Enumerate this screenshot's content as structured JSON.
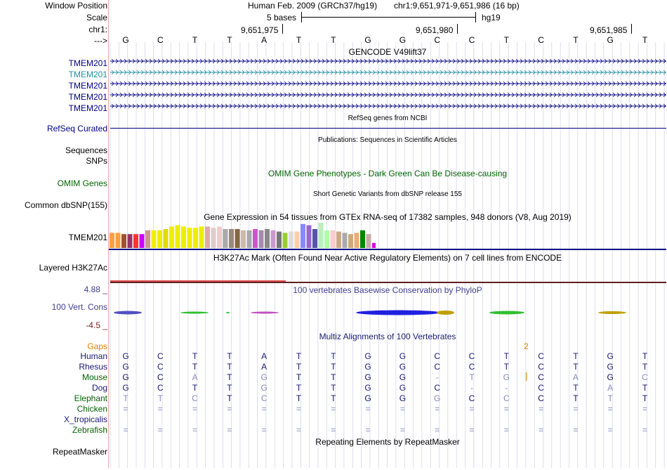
{
  "header": {
    "window_position_label": "Window Position",
    "scale_label": "Scale",
    "chrom_label": "chr1:",
    "arrow_label": "--->",
    "assembly": "Human Feb. 2009 (GRCh37/hg19)",
    "position": "chr1:9,651,971-9,651,986 (16 bp)",
    "scale_text": "5 bases",
    "db": "hg19",
    "coords": [
      "9,651,975",
      "9,651,980",
      "9,651,985"
    ]
  },
  "sequence": [
    "G",
    "C",
    "T",
    "T",
    "A",
    "T",
    "T",
    "G",
    "G",
    "C",
    "C",
    "T",
    "C",
    "T",
    "G",
    "T"
  ],
  "tracks": {
    "gencode_title": "GENCODE V49lift37",
    "gencode_genes": [
      "TMEM201",
      "TMEM201",
      "TMEM201",
      "TMEM201",
      "TMEM201"
    ],
    "refseq_title": "RefSeq genes from NCBI",
    "refseq_label": "RefSeq Curated",
    "pubs_title": "Publications: Sequences in Scientific Articles",
    "sequences_label": "Sequences",
    "snps_label": "SNPs",
    "omim_title": "OMIM Gene Phenotypes - Dark Green Can Be Disease-causing",
    "omim_label": "OMIM Genes",
    "dbsnp_title": "Short Genetic Variants from dbSNP release 155",
    "dbsnp_label": "Common dbSNP(155)",
    "gtex_title": "Gene Expression in 54 tissues from GTEx RNA-seq of 17382 samples, 948 donors (V8, Aug 2019)",
    "gtex_label": "TMEM201",
    "h3k_title": "H3K27Ac Mark (Often Found Near Active Regulatory Elements) on 7 cell lines from ENCODE",
    "h3k_label": "Layered H3K27Ac",
    "cons_title": "100 vertebrates Basewise Conservation by PhyloP",
    "cons_label": "100 Vert. Cons",
    "cons_max": "4.88 _",
    "cons_min": "-4.5 _",
    "multiz_title": "Multiz Alignments of 100 Vertebrates",
    "gaps_label": "Gaps",
    "gap_count": "2",
    "repeat_title": "Repeating Elements by RepeatMasker",
    "repeat_label": "RepeatMasker"
  },
  "gtex_colors": [
    "#ff9f3f",
    "#ff9f3f",
    "#a0522d",
    "#993366",
    "#ff3333",
    "#cc00ff",
    "#cc9988",
    "#eeee00",
    "#eeee00",
    "#dddd00",
    "#eeee00",
    "#eeee00",
    "#eeee00",
    "#eeee00",
    "#eeee00",
    "#eeee00",
    "#ddaaaa",
    "#ddcccc",
    "#eecccc",
    "#aaaaaa",
    "#998877",
    "#886644",
    "#ccbbaa",
    "#aaaaaa",
    "#cc55cc",
    "#aa88aa",
    "#888888",
    "#cc99cc",
    "#777777",
    "#99cc33",
    "#dddddd",
    "#ffccaa",
    "#8888ff",
    "#9966cc",
    "#5555aa",
    "#bbeebb",
    "#aaffaa",
    "#ffcccc",
    "#ccaa88",
    "#aaaaaa",
    "#ccaa77",
    "#eeaa77",
    "#008800",
    "#ccaaaa",
    "#dd00dd"
  ],
  "gtex_values": [
    0.6,
    0.6,
    0.55,
    0.55,
    0.55,
    0.55,
    0.7,
    0.7,
    0.7,
    0.75,
    0.85,
    0.9,
    0.85,
    0.8,
    0.8,
    0.85,
    0.85,
    0.8,
    0.85,
    0.75,
    0.75,
    0.75,
    0.7,
    0.7,
    0.75,
    0.7,
    0.75,
    0.7,
    0.65,
    0.6,
    0.65,
    0.65,
    0.95,
    0.9,
    0.75,
    1.0,
    0.7,
    0.7,
    0.65,
    0.6,
    0.55,
    0.6,
    0.7,
    0.55,
    0.2
  ],
  "species": [
    {
      "name": "Human",
      "color": "#1a1a6e",
      "bases": [
        "G",
        "C",
        "T",
        "T",
        "A",
        "T",
        "T",
        "G",
        "G",
        "C",
        "C",
        "T",
        "C",
        "T",
        "G",
        "T"
      ],
      "match": [
        1,
        1,
        1,
        1,
        1,
        1,
        1,
        1,
        1,
        1,
        1,
        1,
        1,
        1,
        1,
        1
      ]
    },
    {
      "name": "Rhesus",
      "color": "#1a1a6e",
      "bases": [
        "G",
        "C",
        "T",
        "T",
        "A",
        "T",
        "T",
        "G",
        "G",
        "C",
        "C",
        "T",
        "C",
        "T",
        "G",
        "T"
      ],
      "match": [
        1,
        1,
        1,
        1,
        1,
        1,
        1,
        1,
        1,
        1,
        1,
        1,
        1,
        1,
        1,
        1
      ]
    },
    {
      "name": "Mouse",
      "color": "#006400",
      "bases": [
        "G",
        "C",
        "A",
        "T",
        "G",
        "T",
        "T",
        "G",
        "G",
        "-",
        "T",
        "G",
        "C",
        "A",
        "G",
        "C"
      ],
      "match": [
        1,
        1,
        0,
        1,
        0,
        1,
        1,
        1,
        1,
        0,
        0,
        0,
        1,
        0,
        1,
        0
      ]
    },
    {
      "name": "Dog",
      "color": "#1a1a6e",
      "bases": [
        "G",
        "C",
        "T",
        "T",
        "G",
        "T",
        "T",
        "G",
        "G",
        "C",
        "-",
        "-",
        "C",
        "T",
        "A",
        "T"
      ],
      "match": [
        1,
        1,
        1,
        1,
        0,
        1,
        1,
        1,
        1,
        1,
        0,
        0,
        1,
        1,
        0,
        1
      ]
    },
    {
      "name": "Elephant",
      "color": "#006400",
      "bases": [
        "T",
        "T",
        "C",
        "T",
        "C",
        "T",
        "T",
        "G",
        "G",
        "G",
        "C",
        "C",
        "C",
        "T",
        "T",
        "T"
      ],
      "match": [
        0,
        0,
        0,
        1,
        0,
        1,
        1,
        1,
        1,
        0,
        1,
        0,
        1,
        1,
        0,
        1
      ]
    },
    {
      "name": "Chicken",
      "color": "#006400",
      "bases": [
        "=",
        "=",
        "=",
        "=",
        "=",
        "=",
        "=",
        "=",
        "=",
        "=",
        "=",
        "=",
        "=",
        "=",
        "=",
        "="
      ],
      "match": [
        0,
        0,
        0,
        0,
        0,
        0,
        0,
        0,
        0,
        0,
        0,
        0,
        0,
        0,
        0,
        0
      ]
    },
    {
      "name": "X_tropicalis",
      "color": "#1a1a6e",
      "bases": [],
      "match": []
    },
    {
      "name": "Zebrafish",
      "color": "#006400",
      "bases": [
        "=",
        "=",
        "=",
        "=",
        "=",
        "=",
        "=",
        "=",
        "=",
        "=",
        "=",
        "=",
        "=",
        "=",
        "=",
        "="
      ],
      "match": [
        0,
        0,
        0,
        0,
        0,
        0,
        0,
        0,
        0,
        0,
        0,
        0,
        0,
        0,
        0,
        0
      ]
    }
  ],
  "colors": {
    "gene_blue": "#000080",
    "gene_teal": "#2090a0",
    "omim_green": "#006400",
    "cons_blue": "#3f3f8f",
    "gaps_orange": "#e08000",
    "h3k_brown": "#602020",
    "grid": "#c8c8e8"
  }
}
